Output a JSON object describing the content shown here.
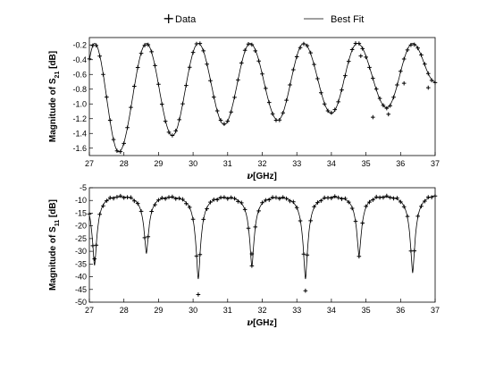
{
  "legend": {
    "data_label": "Data",
    "fit_label": "Best Fit"
  },
  "chart_data": [
    {
      "type": "scatter",
      "panel": "top",
      "xlabel": "ν [GHz]",
      "ylabel": "Magnitude of S21 [dB]",
      "ylabel_main": "Magnitude of S",
      "ylabel_sub": "21",
      "ylabel_unit": " [dB]",
      "xlabel_sym": "ν",
      "xlabel_unit": "[GHz]",
      "xlim": [
        27,
        37
      ],
      "ylim": [
        -1.7,
        -0.1
      ],
      "xticks": [
        27,
        28,
        29,
        30,
        31,
        32,
        33,
        34,
        35,
        36,
        37
      ],
      "yticks": [
        -1.6,
        -1.4,
        -1.2,
        -1.0,
        -0.8,
        -0.6,
        -0.4,
        -0.2
      ],
      "ytick_labels": [
        "-1.6",
        "-1.4",
        "-1.2",
        "-1.0",
        "-0.8",
        "-0.6",
        "-0.4",
        "-0.2"
      ],
      "grid": false,
      "legend_position": "top-center",
      "peaks": [
        27.15,
        28.65,
        30.15,
        31.65,
        33.2,
        34.75,
        36.35
      ],
      "valleys": [
        [
          27.85,
          -1.65
        ],
        [
          29.4,
          -1.43
        ],
        [
          30.9,
          -1.28
        ],
        [
          32.45,
          -1.22
        ],
        [
          34.0,
          -1.13
        ],
        [
          35.6,
          -1.05
        ],
        [
          37.0,
          -0.7
        ]
      ],
      "outliers": [
        [
          34.85,
          -0.35
        ],
        [
          35.2,
          -1.18
        ],
        [
          35.65,
          -1.14
        ],
        [
          36.1,
          -0.72
        ],
        [
          36.8,
          -0.78
        ]
      ],
      "series": [
        {
          "name": "Data"
        },
        {
          "name": "Best Fit"
        }
      ]
    },
    {
      "type": "scatter",
      "panel": "bottom",
      "xlabel": "ν [GHz]",
      "ylabel": "Magnitude of S11 [dB]",
      "ylabel_main": "Magnitude of S",
      "ylabel_sub": "11",
      "ylabel_unit": " [dB]",
      "xlabel_sym": "ν",
      "xlabel_unit": "[GHz]",
      "xlim": [
        27,
        37
      ],
      "ylim": [
        -50,
        -5
      ],
      "xticks": [
        27,
        28,
        29,
        30,
        31,
        32,
        33,
        34,
        35,
        36,
        37
      ],
      "yticks": [
        -50,
        -45,
        -40,
        -35,
        -30,
        -25,
        -20,
        -15,
        -10,
        -5
      ],
      "ytick_labels": [
        "-50",
        "-45",
        "-40",
        "-35",
        "-30",
        "-25",
        "-20",
        "-15",
        "-10",
        "-5"
      ],
      "grid": false,
      "baseline": -6.5,
      "dips": [
        [
          27.15,
          -35
        ],
        [
          28.65,
          -30
        ],
        [
          30.15,
          -40
        ],
        [
          31.7,
          -35
        ],
        [
          33.25,
          -40
        ],
        [
          34.8,
          -31
        ],
        [
          36.35,
          -38
        ]
      ],
      "outliers": [
        [
          30.15,
          -47
        ],
        [
          33.25,
          -45.5
        ],
        [
          27.15,
          -33
        ],
        [
          31.7,
          -31
        ]
      ],
      "series": [
        {
          "name": "Data"
        },
        {
          "name": "Best Fit"
        }
      ]
    }
  ]
}
